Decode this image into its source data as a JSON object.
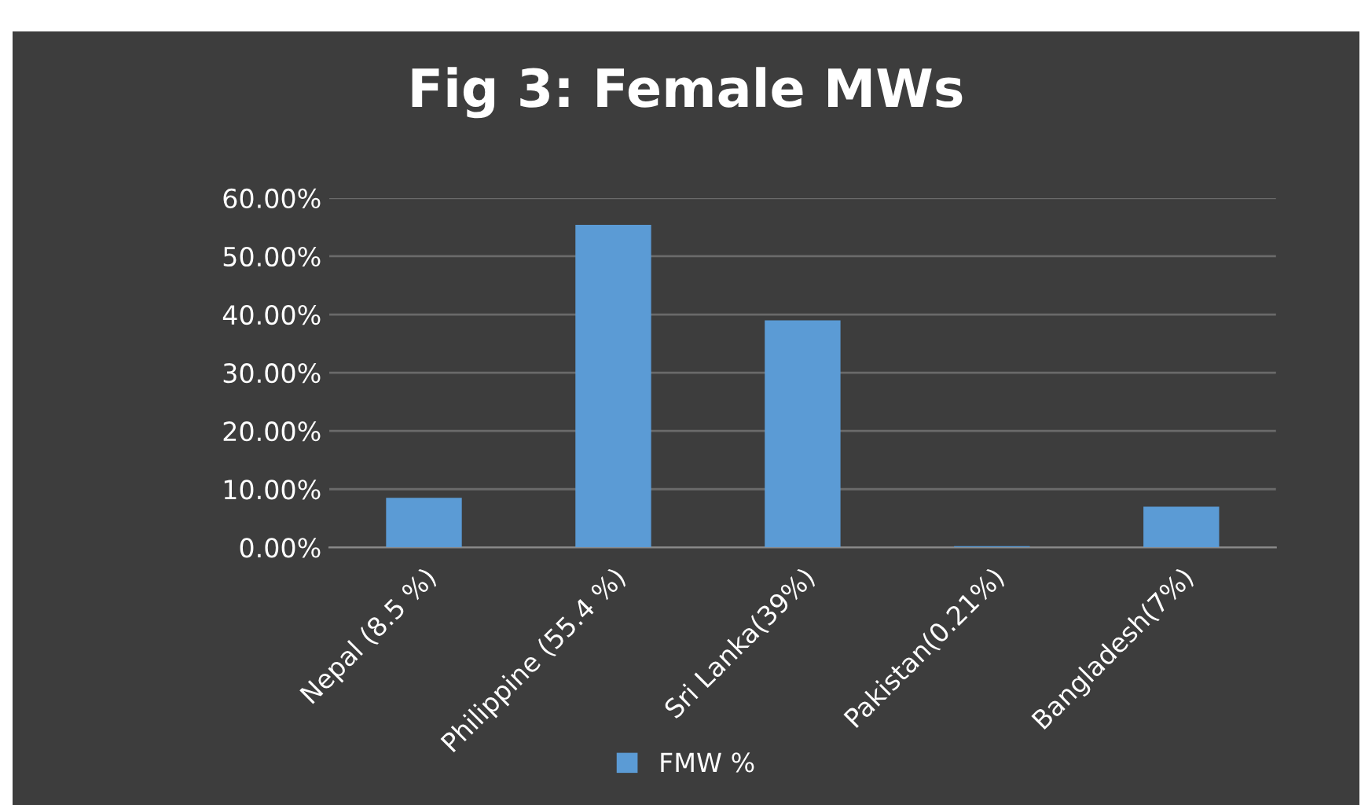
{
  "chart_data": {
    "type": "bar",
    "title": "Fig 3: Female MWs",
    "categories": [
      "Nepal (8.5 %)",
      "Philippine (55.4 %)",
      "Sri Lanka(39%)",
      "Pakistan(0.21%)",
      "Bangladesh(7%)"
    ],
    "series": [
      {
        "name": "FMW %",
        "color": "#5b9bd5",
        "values": [
          8.5,
          55.4,
          39,
          0.21,
          7
        ]
      }
    ],
    "ylim": [
      0,
      60
    ],
    "yticks": [
      {
        "value": 0,
        "label": "0.00%"
      },
      {
        "value": 10,
        "label": "10.00%"
      },
      {
        "value": 20,
        "label": "20.00%"
      },
      {
        "value": 30,
        "label": "30.00%"
      },
      {
        "value": 40,
        "label": "40.00%"
      },
      {
        "value": 50,
        "label": "50.00%"
      },
      {
        "value": 60,
        "label": "60.00%"
      }
    ],
    "grid": "y",
    "legend": "bottom"
  }
}
